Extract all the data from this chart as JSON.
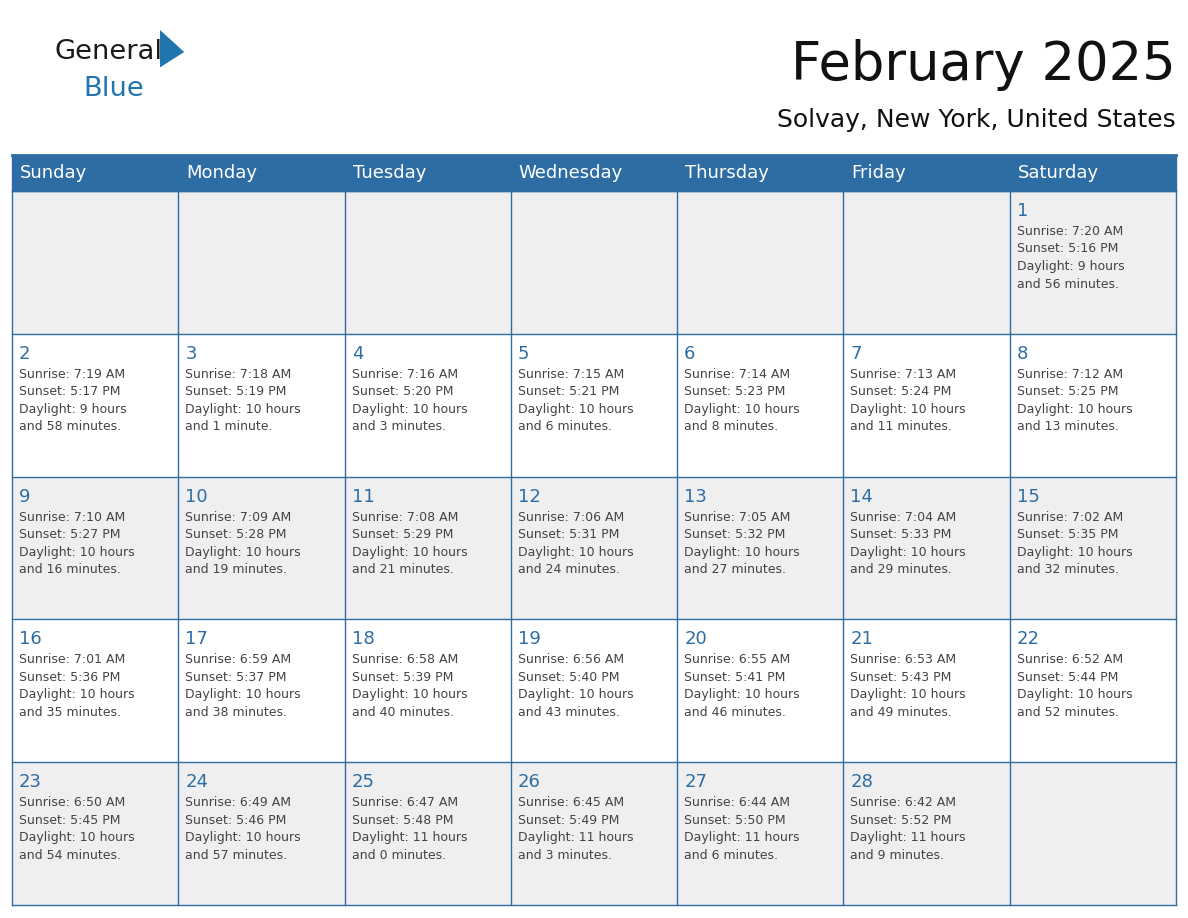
{
  "title": "February 2025",
  "subtitle": "Solvay, New York, United States",
  "header_bg": "#2E6DA4",
  "header_text_color": "#FFFFFF",
  "cell_bg_odd": "#EFEFEF",
  "cell_bg_even": "#FFFFFF",
  "border_color": "#2E6DA4",
  "day_number_color": "#2E6DA4",
  "text_color": "#444444",
  "days_of_week": [
    "Sunday",
    "Monday",
    "Tuesday",
    "Wednesday",
    "Thursday",
    "Friday",
    "Saturday"
  ],
  "weeks": [
    [
      {
        "day": null,
        "info": ""
      },
      {
        "day": null,
        "info": ""
      },
      {
        "day": null,
        "info": ""
      },
      {
        "day": null,
        "info": ""
      },
      {
        "day": null,
        "info": ""
      },
      {
        "day": null,
        "info": ""
      },
      {
        "day": "1",
        "info": "Sunrise: 7:20 AM\nSunset: 5:16 PM\nDaylight: 9 hours\nand 56 minutes."
      }
    ],
    [
      {
        "day": "2",
        "info": "Sunrise: 7:19 AM\nSunset: 5:17 PM\nDaylight: 9 hours\nand 58 minutes."
      },
      {
        "day": "3",
        "info": "Sunrise: 7:18 AM\nSunset: 5:19 PM\nDaylight: 10 hours\nand 1 minute."
      },
      {
        "day": "4",
        "info": "Sunrise: 7:16 AM\nSunset: 5:20 PM\nDaylight: 10 hours\nand 3 minutes."
      },
      {
        "day": "5",
        "info": "Sunrise: 7:15 AM\nSunset: 5:21 PM\nDaylight: 10 hours\nand 6 minutes."
      },
      {
        "day": "6",
        "info": "Sunrise: 7:14 AM\nSunset: 5:23 PM\nDaylight: 10 hours\nand 8 minutes."
      },
      {
        "day": "7",
        "info": "Sunrise: 7:13 AM\nSunset: 5:24 PM\nDaylight: 10 hours\nand 11 minutes."
      },
      {
        "day": "8",
        "info": "Sunrise: 7:12 AM\nSunset: 5:25 PM\nDaylight: 10 hours\nand 13 minutes."
      }
    ],
    [
      {
        "day": "9",
        "info": "Sunrise: 7:10 AM\nSunset: 5:27 PM\nDaylight: 10 hours\nand 16 minutes."
      },
      {
        "day": "10",
        "info": "Sunrise: 7:09 AM\nSunset: 5:28 PM\nDaylight: 10 hours\nand 19 minutes."
      },
      {
        "day": "11",
        "info": "Sunrise: 7:08 AM\nSunset: 5:29 PM\nDaylight: 10 hours\nand 21 minutes."
      },
      {
        "day": "12",
        "info": "Sunrise: 7:06 AM\nSunset: 5:31 PM\nDaylight: 10 hours\nand 24 minutes."
      },
      {
        "day": "13",
        "info": "Sunrise: 7:05 AM\nSunset: 5:32 PM\nDaylight: 10 hours\nand 27 minutes."
      },
      {
        "day": "14",
        "info": "Sunrise: 7:04 AM\nSunset: 5:33 PM\nDaylight: 10 hours\nand 29 minutes."
      },
      {
        "day": "15",
        "info": "Sunrise: 7:02 AM\nSunset: 5:35 PM\nDaylight: 10 hours\nand 32 minutes."
      }
    ],
    [
      {
        "day": "16",
        "info": "Sunrise: 7:01 AM\nSunset: 5:36 PM\nDaylight: 10 hours\nand 35 minutes."
      },
      {
        "day": "17",
        "info": "Sunrise: 6:59 AM\nSunset: 5:37 PM\nDaylight: 10 hours\nand 38 minutes."
      },
      {
        "day": "18",
        "info": "Sunrise: 6:58 AM\nSunset: 5:39 PM\nDaylight: 10 hours\nand 40 minutes."
      },
      {
        "day": "19",
        "info": "Sunrise: 6:56 AM\nSunset: 5:40 PM\nDaylight: 10 hours\nand 43 minutes."
      },
      {
        "day": "20",
        "info": "Sunrise: 6:55 AM\nSunset: 5:41 PM\nDaylight: 10 hours\nand 46 minutes."
      },
      {
        "day": "21",
        "info": "Sunrise: 6:53 AM\nSunset: 5:43 PM\nDaylight: 10 hours\nand 49 minutes."
      },
      {
        "day": "22",
        "info": "Sunrise: 6:52 AM\nSunset: 5:44 PM\nDaylight: 10 hours\nand 52 minutes."
      }
    ],
    [
      {
        "day": "23",
        "info": "Sunrise: 6:50 AM\nSunset: 5:45 PM\nDaylight: 10 hours\nand 54 minutes."
      },
      {
        "day": "24",
        "info": "Sunrise: 6:49 AM\nSunset: 5:46 PM\nDaylight: 10 hours\nand 57 minutes."
      },
      {
        "day": "25",
        "info": "Sunrise: 6:47 AM\nSunset: 5:48 PM\nDaylight: 11 hours\nand 0 minutes."
      },
      {
        "day": "26",
        "info": "Sunrise: 6:45 AM\nSunset: 5:49 PM\nDaylight: 11 hours\nand 3 minutes."
      },
      {
        "day": "27",
        "info": "Sunrise: 6:44 AM\nSunset: 5:50 PM\nDaylight: 11 hours\nand 6 minutes."
      },
      {
        "day": "28",
        "info": "Sunrise: 6:42 AM\nSunset: 5:52 PM\nDaylight: 11 hours\nand 9 minutes."
      },
      {
        "day": null,
        "info": ""
      }
    ]
  ],
  "logo_color_general": "#1a1a1a",
  "logo_color_blue": "#2176AE",
  "logo_triangle_color": "#2176AE",
  "title_fontsize": 38,
  "subtitle_fontsize": 18,
  "header_fontsize": 13,
  "day_num_fontsize": 13,
  "cell_text_fontsize": 9
}
